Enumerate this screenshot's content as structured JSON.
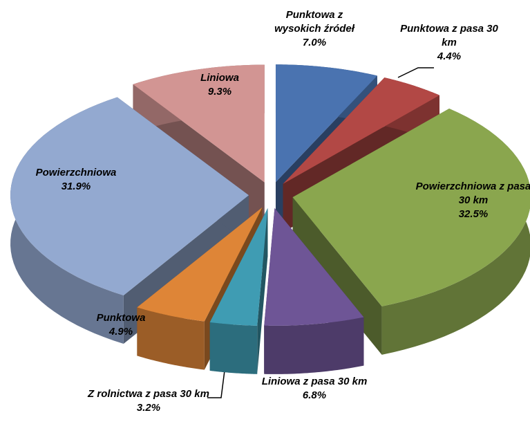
{
  "chart_data": {
    "type": "pie3d",
    "categories": [
      "Punktowa z wysokich źródeł",
      "Punktowa z pasa 30 km",
      "Powierzchniowa z pasa 30 km",
      "Liniowa z pasa 30 km",
      "Z rolnictwa z pasa 30 km",
      "Punktowa",
      "Powierzchniowa",
      "Liniowa"
    ],
    "values": [
      7.0,
      4.4,
      32.5,
      6.8,
      3.2,
      4.9,
      31.9,
      9.3
    ],
    "value_labels": [
      "7.0%",
      "4.4%",
      "32.5%",
      "6.8%",
      "3.2%",
      "4.9%",
      "31.9%",
      "9.3%"
    ],
    "colors": [
      "#4a73b0",
      "#b24845",
      "#8aa64e",
      "#6e5596",
      "#3f9cb3",
      "#de8537",
      "#93a9d0",
      "#d29593"
    ]
  }
}
